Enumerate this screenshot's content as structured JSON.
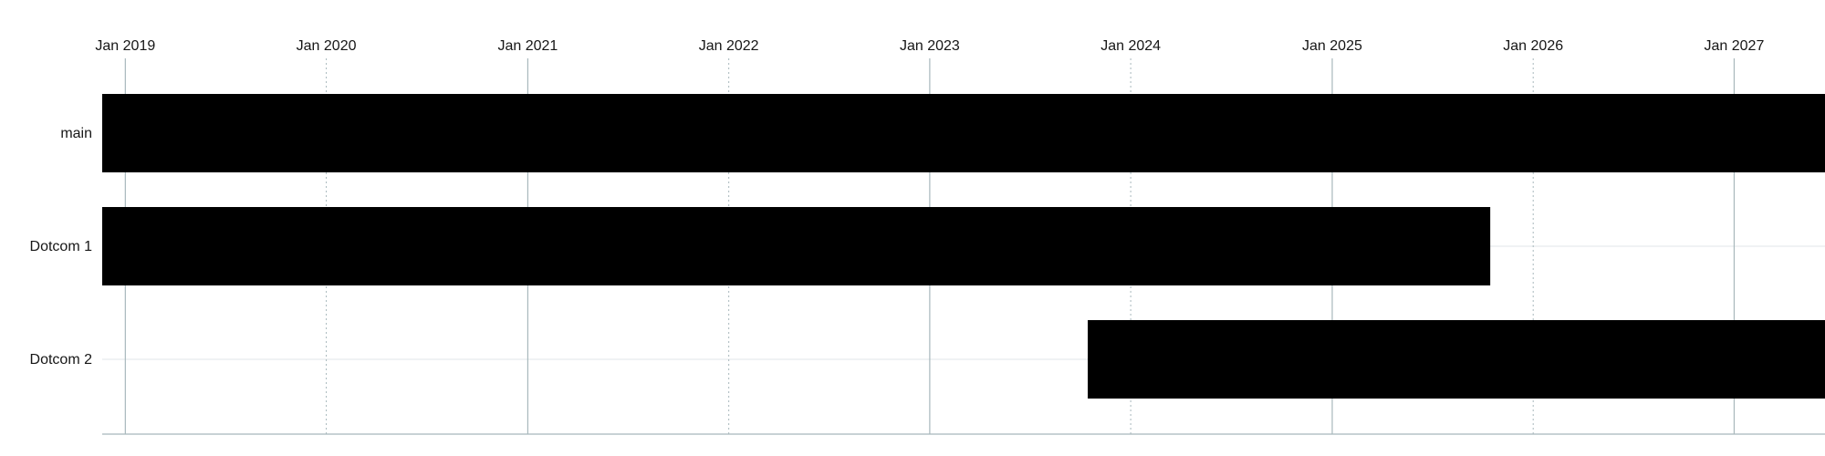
{
  "chart_data": {
    "type": "bar",
    "orientation": "horizontal",
    "subtype": "timeline",
    "title": "",
    "xlabel": "",
    "ylabel": "",
    "x_axis": {
      "position": "top",
      "tick_labels": [
        "Jan 2019",
        "Jan 2020",
        "Jan 2021",
        "Jan 2022",
        "Jan 2023",
        "Jan 2024",
        "Jan 2025",
        "Jan 2026",
        "Jan 2027"
      ],
      "ticks": [
        "2019-01-01",
        "2020-01-01",
        "2021-01-01",
        "2022-01-01",
        "2023-01-01",
        "2024-01-01",
        "2025-01-01",
        "2026-01-01",
        "2027-01-01"
      ],
      "range": [
        "2018-11-20",
        "2027-06-15"
      ]
    },
    "categories": [
      "main",
      "Dotcom 1",
      "Dotcom 2"
    ],
    "bars": [
      {
        "category": "main",
        "start": "2018-11-20",
        "end": "2027-06-15"
      },
      {
        "category": "Dotcom 1",
        "start": "2018-11-20",
        "end": "2025-10-15"
      },
      {
        "category": "Dotcom 2",
        "start": "2023-10-15",
        "end": "2027-06-15"
      }
    ],
    "grid": true,
    "colors": {
      "bar": "#000000",
      "major_gridline": "#a8b8bc",
      "minor_gridline": "#a8b8bc",
      "row_gridline": "#e0e6e8",
      "axis_line": "#a8b8bc",
      "text": "#161616"
    }
  }
}
